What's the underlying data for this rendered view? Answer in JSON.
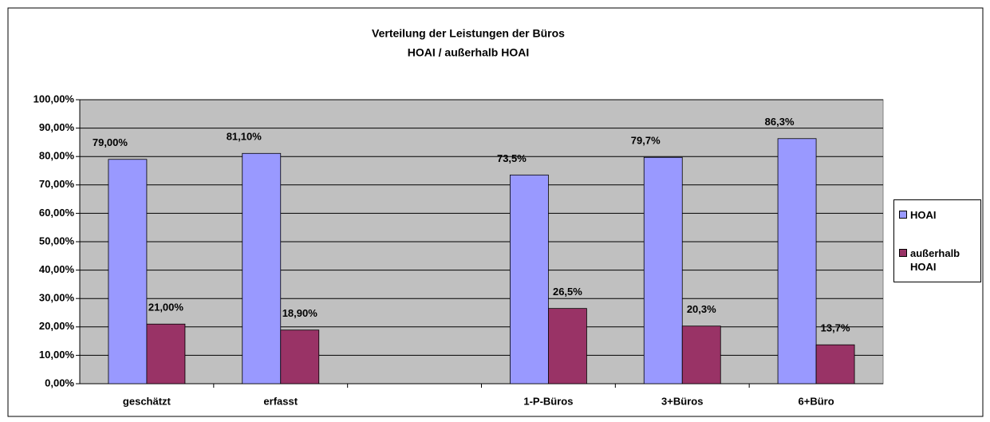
{
  "chart_data": {
    "type": "bar",
    "title": [
      "Verteilung der Leistungen der Büros",
      "HOAI / außerhalb HOAI"
    ],
    "categories": [
      "geschätzt",
      "erfasst",
      null,
      "1-P-Büros",
      "3+Büros",
      "6+Büro"
    ],
    "series": [
      {
        "name": "HOAI",
        "color": "#9999ff",
        "values": [
          79,
          81.1,
          null,
          73.5,
          79.7,
          86.3
        ],
        "value_labels": [
          "79,00%",
          "81,10%",
          null,
          "73,5%",
          "79,7%",
          "86,3%"
        ]
      },
      {
        "name": "außerhalb HOAI",
        "color": "#993366",
        "values": [
          21,
          18.9,
          null,
          26.5,
          20.3,
          13.7
        ],
        "value_labels": [
          "21,00%",
          "18,90%",
          null,
          "26,5%",
          "20,3%",
          "13,7%"
        ]
      }
    ],
    "ylim": [
      0,
      100
    ],
    "yticks": [
      {
        "value": 0,
        "label": "0,00%"
      },
      {
        "value": 10,
        "label": "10,00%"
      },
      {
        "value": 20,
        "label": "20,00%"
      },
      {
        "value": 30,
        "label": "30,00%"
      },
      {
        "value": 40,
        "label": "40,00%"
      },
      {
        "value": 50,
        "label": "50,00%"
      },
      {
        "value": 60,
        "label": "60,00%"
      },
      {
        "value": 70,
        "label": "70,00%"
      },
      {
        "value": 80,
        "label": "80,00%"
      },
      {
        "value": 90,
        "label": "90,00%"
      },
      {
        "value": 100,
        "label": "100,00%"
      }
    ],
    "grid": true,
    "legend": "right",
    "plot_background": "#c0c0c0"
  }
}
